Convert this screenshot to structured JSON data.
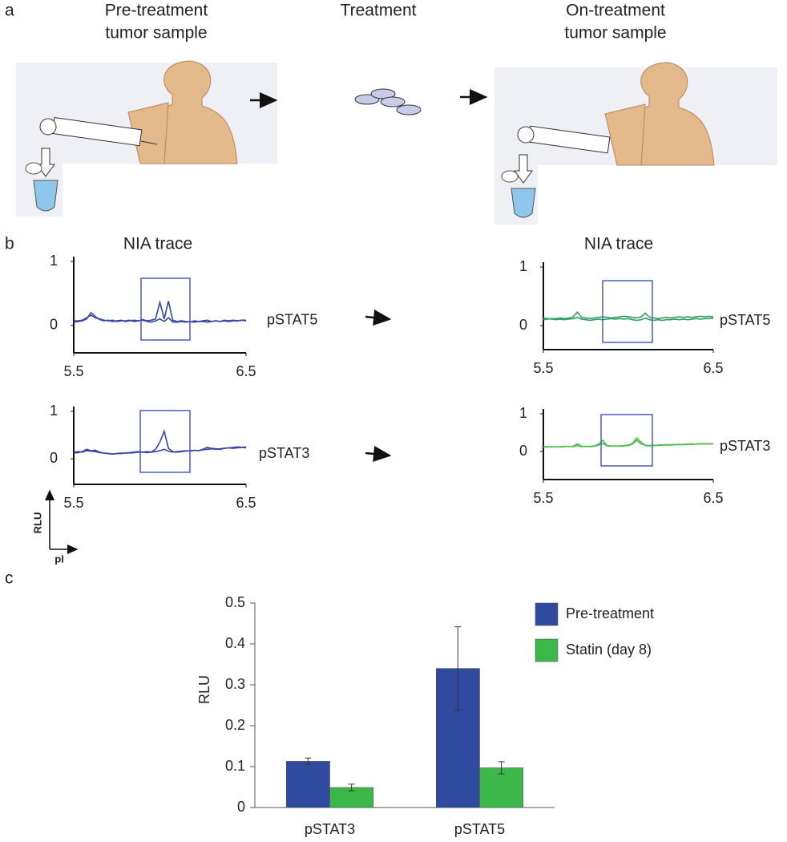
{
  "panel_labels": [
    "a",
    "b",
    "c"
  ],
  "panel_a": {
    "steps": [
      {
        "lines": [
          "Pre-treatment",
          "tumor sample"
        ]
      },
      {
        "lines": [
          "Treatment"
        ]
      },
      {
        "lines": [
          "On-treatment",
          "tumor sample"
        ]
      }
    ]
  },
  "axis_key": {
    "y": "RLU",
    "x": "pI"
  },
  "chart_data": [
    {
      "type": "line",
      "title": "NIA trace",
      "label": "pSTAT5",
      "x": [
        5.5,
        5.525,
        5.55,
        5.575,
        5.6,
        5.625,
        5.65,
        5.675,
        5.7,
        5.725,
        5.75,
        5.775,
        5.8,
        5.825,
        5.85,
        5.875,
        5.9,
        5.925,
        5.95,
        5.975,
        6,
        6.025,
        6.05,
        6.075,
        6.1,
        6.125,
        6.15,
        6.175,
        6.2,
        6.225,
        6.25,
        6.275,
        6.3,
        6.325,
        6.35,
        6.375,
        6.4,
        6.425,
        6.45,
        6.475,
        6.5
      ],
      "series": [
        {
          "color": "#3346a8",
          "values": [
            0.05,
            0.06,
            0.07,
            0.1,
            0.2,
            0.14,
            0.09,
            0.07,
            0.08,
            0.06,
            0.07,
            0.08,
            0.06,
            0.07,
            0.08,
            0.07,
            0.09,
            0.07,
            0.08,
            0.1,
            0.36,
            0.1,
            0.38,
            0.08,
            0.06,
            0.07,
            0.06,
            0.05,
            0.07,
            0.06,
            0.07,
            0.08,
            0.06,
            0.07,
            0.06,
            0.08,
            0.07,
            0.08,
            0.07,
            0.08,
            0.07
          ]
        },
        {
          "color": "#3346a8",
          "values": [
            0.07,
            0.07,
            0.08,
            0.12,
            0.16,
            0.12,
            0.1,
            0.08,
            0.07,
            0.08,
            0.06,
            0.07,
            0.07,
            0.08,
            0.06,
            0.07,
            0.08,
            0.06,
            0.05,
            0.07,
            0.1,
            0.06,
            0.12,
            0.05,
            0.05,
            0.06,
            0.05,
            0.06,
            0.05,
            0.06,
            0.06,
            0.05,
            0.06,
            0.07,
            0.06,
            0.07,
            0.06,
            0.07,
            0.07,
            0.08,
            0.08
          ]
        }
      ],
      "xlim": [
        5.5,
        6.5
      ],
      "xticks": [
        5.5,
        6.5
      ],
      "ylim": [
        -0.43,
        1
      ],
      "yticks": [
        0,
        1
      ]
    },
    {
      "type": "line",
      "label": "pSTAT3",
      "x": [
        5.5,
        5.525,
        5.55,
        5.575,
        5.6,
        5.625,
        5.65,
        5.675,
        5.7,
        5.725,
        5.75,
        5.775,
        5.8,
        5.825,
        5.85,
        5.875,
        5.9,
        5.925,
        5.95,
        5.975,
        6,
        6.025,
        6.05,
        6.075,
        6.1,
        6.125,
        6.15,
        6.175,
        6.2,
        6.225,
        6.25,
        6.275,
        6.3,
        6.325,
        6.35,
        6.375,
        6.4,
        6.425,
        6.45,
        6.475,
        6.5
      ],
      "series": [
        {
          "color": "#3346a8",
          "values": [
            0.12,
            0.13,
            0.15,
            0.2,
            0.17,
            0.18,
            0.14,
            0.12,
            0.11,
            0.1,
            0.11,
            0.12,
            0.12,
            0.13,
            0.14,
            0.15,
            0.14,
            0.15,
            0.14,
            0.2,
            0.35,
            0.58,
            0.22,
            0.15,
            0.14,
            0.15,
            0.16,
            0.17,
            0.18,
            0.17,
            0.2,
            0.24,
            0.22,
            0.21,
            0.2,
            0.22,
            0.23,
            0.24,
            0.25,
            0.24,
            0.23
          ]
        },
        {
          "color": "#3346a8",
          "values": [
            0.14,
            0.15,
            0.14,
            0.17,
            0.16,
            0.15,
            0.13,
            0.12,
            0.11,
            0.1,
            0.11,
            0.11,
            0.12,
            0.12,
            0.13,
            0.14,
            0.14,
            0.13,
            0.14,
            0.15,
            0.17,
            0.2,
            0.16,
            0.14,
            0.15,
            0.16,
            0.17,
            0.16,
            0.18,
            0.17,
            0.19,
            0.2,
            0.21,
            0.2,
            0.21,
            0.22,
            0.23,
            0.22,
            0.23,
            0.24,
            0.25
          ]
        }
      ],
      "xlim": [
        5.5,
        6.5
      ],
      "xticks": [
        5.5,
        6.5
      ],
      "ylim": [
        -0.54,
        1
      ],
      "yticks": [
        0,
        1
      ]
    },
    {
      "type": "line",
      "title": "NIA trace",
      "label": "pSTAT5",
      "x": [
        5.5,
        5.525,
        5.55,
        5.575,
        5.6,
        5.625,
        5.65,
        5.675,
        5.7,
        5.725,
        5.75,
        5.775,
        5.8,
        5.825,
        5.85,
        5.875,
        5.9,
        5.925,
        5.95,
        5.975,
        6,
        6.025,
        6.05,
        6.075,
        6.1,
        6.125,
        6.15,
        6.175,
        6.2,
        6.225,
        6.25,
        6.275,
        6.3,
        6.325,
        6.35,
        6.375,
        6.4,
        6.425,
        6.45,
        6.475,
        6.5
      ],
      "series": [
        {
          "color": "#2e9e5e",
          "values": [
            0.1,
            0.11,
            0.12,
            0.12,
            0.13,
            0.12,
            0.13,
            0.15,
            0.23,
            0.14,
            0.13,
            0.12,
            0.13,
            0.14,
            0.15,
            0.14,
            0.13,
            0.14,
            0.15,
            0.16,
            0.15,
            0.14,
            0.13,
            0.15,
            0.21,
            0.14,
            0.13,
            0.12,
            0.13,
            0.14,
            0.13,
            0.14,
            0.15,
            0.14,
            0.15,
            0.14,
            0.15,
            0.16,
            0.15,
            0.16,
            0.15
          ]
        },
        {
          "color": "#2e9e5e",
          "values": [
            0.13,
            0.12,
            0.11,
            0.1,
            0.11,
            0.1,
            0.11,
            0.12,
            0.14,
            0.11,
            0.1,
            0.09,
            0.1,
            0.11,
            0.1,
            0.11,
            0.12,
            0.11,
            0.12,
            0.11,
            0.12,
            0.1,
            0.09,
            0.1,
            0.13,
            0.1,
            0.09,
            0.1,
            0.09,
            0.1,
            0.1,
            0.11,
            0.1,
            0.11,
            0.1,
            0.11,
            0.12,
            0.11,
            0.12,
            0.12,
            0.13
          ]
        }
      ],
      "xlim": [
        5.5,
        6.5
      ],
      "xticks": [
        5.5,
        6.5
      ],
      "ylim": [
        -0.41,
        1
      ],
      "yticks": [
        0,
        1
      ]
    },
    {
      "type": "line",
      "label": "pSTAT3",
      "x": [
        5.5,
        5.525,
        5.55,
        5.575,
        5.6,
        5.625,
        5.65,
        5.675,
        5.7,
        5.725,
        5.75,
        5.775,
        5.8,
        5.825,
        5.85,
        5.875,
        5.9,
        5.925,
        5.95,
        5.975,
        6,
        6.025,
        6.05,
        6.075,
        6.1,
        6.125,
        6.15,
        6.175,
        6.2,
        6.225,
        6.25,
        6.275,
        6.3,
        6.325,
        6.35,
        6.375,
        6.4,
        6.425,
        6.45,
        6.475,
        6.5
      ],
      "series": [
        {
          "color": "#4cbf4a",
          "values": [
            0.12,
            0.12,
            0.13,
            0.12,
            0.13,
            0.14,
            0.13,
            0.14,
            0.2,
            0.14,
            0.13,
            0.14,
            0.15,
            0.2,
            0.3,
            0.16,
            0.15,
            0.14,
            0.15,
            0.16,
            0.17,
            0.22,
            0.36,
            0.25,
            0.16,
            0.15,
            0.16,
            0.17,
            0.18,
            0.17,
            0.18,
            0.19,
            0.18,
            0.19,
            0.2,
            0.19,
            0.2,
            0.21,
            0.2,
            0.21,
            0.2
          ]
        },
        {
          "color": "#4cbf4a",
          "values": [
            0.13,
            0.13,
            0.12,
            0.13,
            0.12,
            0.13,
            0.14,
            0.13,
            0.16,
            0.13,
            0.14,
            0.13,
            0.14,
            0.17,
            0.22,
            0.15,
            0.14,
            0.15,
            0.14,
            0.15,
            0.16,
            0.2,
            0.3,
            0.2,
            0.17,
            0.16,
            0.17,
            0.16,
            0.17,
            0.18,
            0.17,
            0.18,
            0.19,
            0.18,
            0.19,
            0.2,
            0.2,
            0.2,
            0.21,
            0.2,
            0.21
          ]
        }
      ],
      "xlim": [
        5.5,
        6.5
      ],
      "xticks": [
        5.5,
        6.5
      ],
      "ylim": [
        -0.74,
        1
      ],
      "yticks": [
        0,
        1
      ]
    },
    {
      "type": "bar",
      "y_label": "RLU",
      "categories": [
        "pSTAT3",
        "pSTAT5"
      ],
      "series": [
        {
          "name": "Pre-treatment",
          "color": "#2f4a9e",
          "values": [
            0.113,
            0.34
          ],
          "errors": [
            0.008,
            0.102
          ]
        },
        {
          "name": "Statin (day 8)",
          "color": "#3cb84a",
          "values": [
            0.049,
            0.097
          ],
          "errors": [
            0.008,
            0.015
          ]
        }
      ],
      "ylim": [
        0,
        0.5
      ],
      "yticks": [
        0,
        0.1,
        0.2,
        0.3,
        0.4,
        0.5
      ]
    }
  ]
}
